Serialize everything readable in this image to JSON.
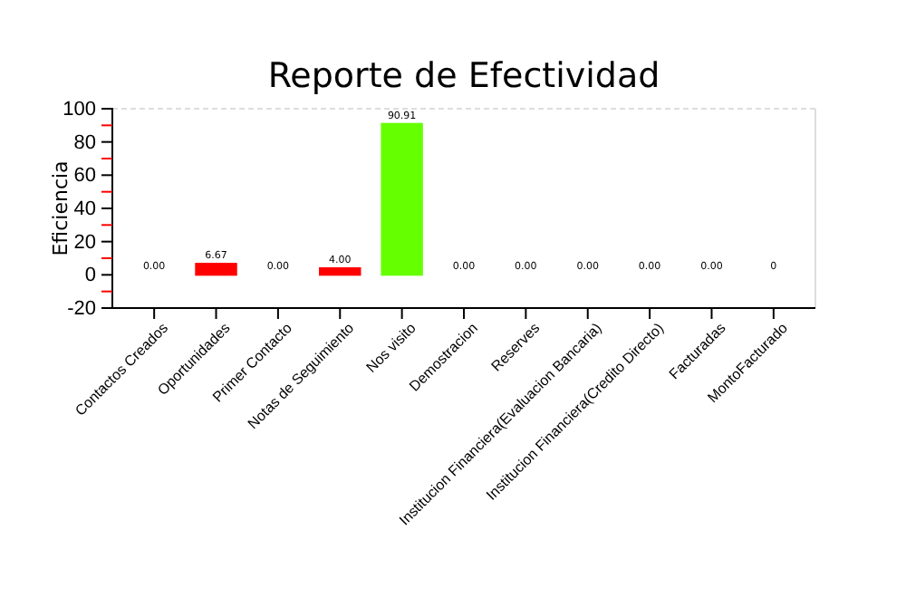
{
  "chart_data": {
    "type": "bar",
    "title": "Reporte de Efectividad",
    "ylabel": "Eficiencia",
    "categories": [
      "Contactos Creados",
      "Oportunidades",
      "Primer Contacto",
      "Notas de Seguimiento",
      "Nos visito",
      "Demostracion",
      "Reserves",
      "Institucion Financiera(Evaluacion Bancaria)",
      "Institucion Financiera(Credito Directo)",
      "Facturadas",
      "MontoFacturado"
    ],
    "values": [
      0,
      6.67,
      0,
      4,
      90.91,
      0,
      0,
      0,
      0,
      0,
      0
    ],
    "value_labels": [
      "0.00",
      "6.67",
      "0.00",
      "4.00",
      "90.91",
      "0.00",
      "0.00",
      "0.00",
      "0.00",
      "0.00",
      "0"
    ],
    "colors": [
      "#ff0000",
      "#ff0000",
      "#ff0000",
      "#ff0000",
      "#66ff00",
      "#ff0000",
      "#ff0000",
      "#ff0000",
      "#ff0000",
      "#ff0000",
      "#ff0000"
    ],
    "ylim": [
      -20,
      100
    ],
    "yticks": [
      -20,
      {
        "value": -10,
        "label": null
      },
      0,
      {
        "value": 10,
        "label": null
      },
      20,
      {
        "value": 30,
        "label": null
      },
      40,
      {
        "value": 50,
        "label": null
      },
      60,
      {
        "value": 70,
        "label": null
      },
      80,
      {
        "value": 90,
        "label": null
      },
      100
    ]
  }
}
